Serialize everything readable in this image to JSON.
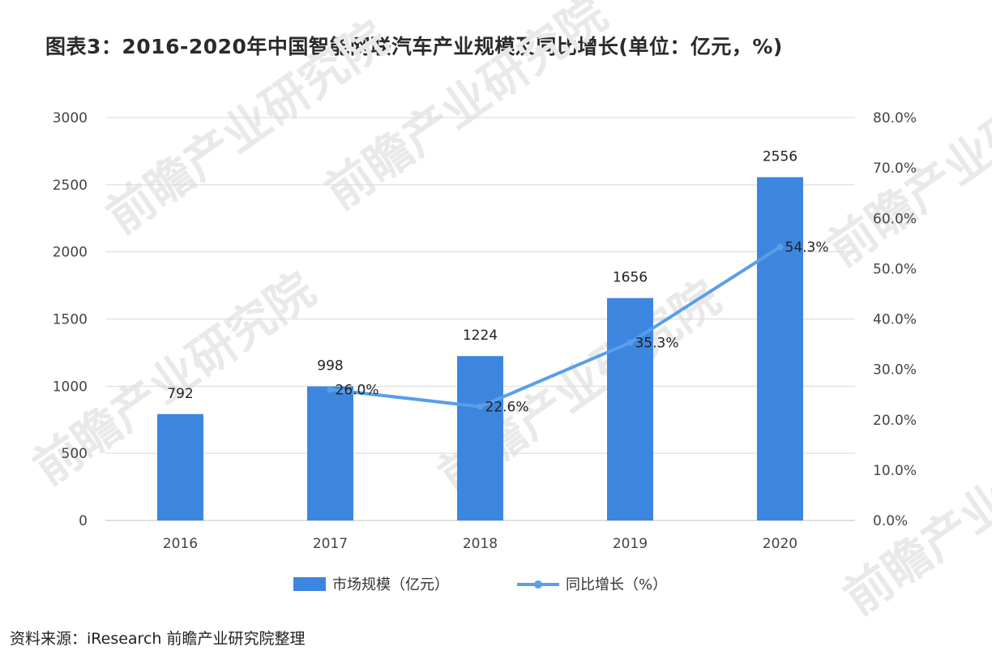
{
  "title": "图表3：2016-2020年中国智能网联汽车产业规模及同比增长(单位：亿元，%)",
  "source": "资料来源：iResearch 前瞻产业研究院整理",
  "watermark": "前瞻产业研究院",
  "colors": {
    "bar": "#3d86e0",
    "line": "#5a9ee8",
    "grid": "#d9d9d9",
    "axis": "#bfbfbf"
  },
  "chart_data": {
    "type": "bar",
    "categories": [
      "2016",
      "2017",
      "2018",
      "2019",
      "2020"
    ],
    "series": [
      {
        "name": "市场规模（亿元）",
        "type": "bar",
        "axis": "left",
        "values": [
          792,
          998,
          1224,
          1656,
          2556
        ],
        "labels": [
          "792",
          "998",
          "1224",
          "1656",
          "2556"
        ]
      },
      {
        "name": "同比增长（%）",
        "type": "line",
        "axis": "right",
        "values": [
          null,
          26.0,
          22.6,
          35.3,
          54.3
        ],
        "labels": [
          "",
          "26.0%",
          "22.6%",
          "35.3%",
          "54.3%"
        ]
      }
    ],
    "left_axis": {
      "min": 0,
      "max": 3000,
      "ticks": [
        "0",
        "500",
        "1000",
        "1500",
        "2000",
        "2500",
        "3000"
      ]
    },
    "right_axis": {
      "min": 0,
      "max": 80,
      "ticks": [
        "0.0%",
        "10.0%",
        "20.0%",
        "30.0%",
        "40.0%",
        "50.0%",
        "60.0%",
        "70.0%",
        "80.0%"
      ]
    },
    "grid": true,
    "legend_position": "bottom"
  }
}
